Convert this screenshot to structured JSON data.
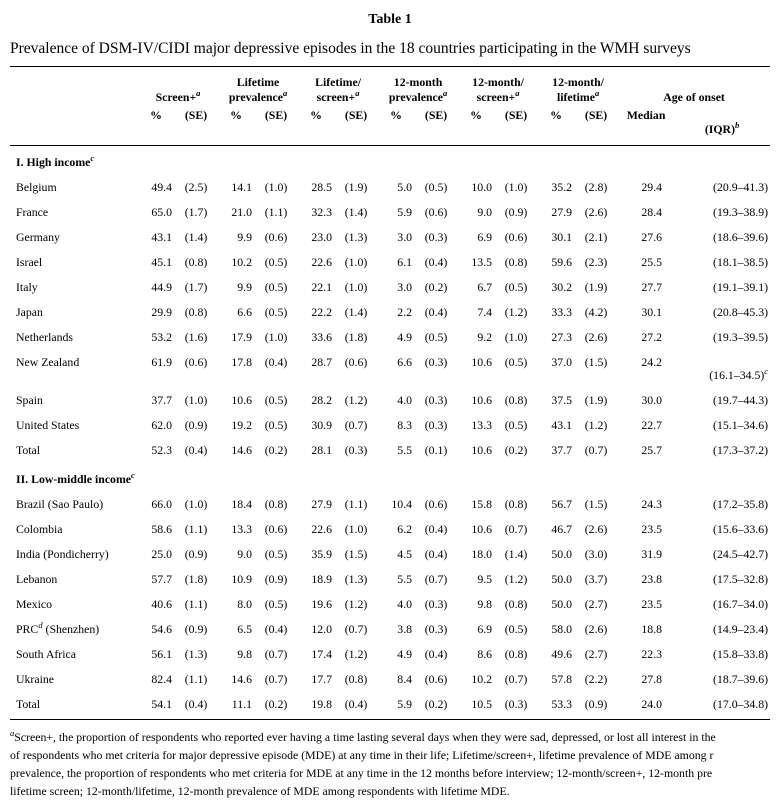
{
  "table": {
    "label": "Table 1",
    "caption": "Prevalence of DSM-IV/CIDI major depressive episodes in the 18 countries participating in the WMH surveys",
    "columns": [
      {
        "lines": [
          "Screen+"
        ],
        "sup": "a",
        "sub": [
          "%",
          "(SE)"
        ],
        "sub_sups": [
          "",
          ""
        ]
      },
      {
        "lines": [
          "Lifetime",
          "prevalence"
        ],
        "sup": "a",
        "sub": [
          "%",
          "(SE)"
        ],
        "sub_sups": [
          "",
          ""
        ]
      },
      {
        "lines": [
          "Lifetime/",
          "screen+"
        ],
        "sup": "a",
        "sub": [
          "%",
          "(SE)"
        ],
        "sub_sups": [
          "",
          ""
        ]
      },
      {
        "lines": [
          "12-month",
          "prevalence"
        ],
        "sup": "a",
        "sub": [
          "%",
          "(SE)"
        ],
        "sub_sups": [
          "",
          ""
        ]
      },
      {
        "lines": [
          "12-month/",
          "screen+"
        ],
        "sup": "a",
        "sub": [
          "%",
          "(SE)"
        ],
        "sub_sups": [
          "",
          ""
        ]
      },
      {
        "lines": [
          "12-month/",
          "lifetime"
        ],
        "sup": "a",
        "sub": [
          "%",
          "(SE)"
        ],
        "sub_sups": [
          "",
          ""
        ]
      },
      {
        "lines": [
          "Age of onset"
        ],
        "sup": "",
        "sub": [
          "Median",
          "(IQR)"
        ],
        "sub_sups": [
          "",
          "b"
        ]
      }
    ],
    "sections": [
      {
        "title": "I. High income",
        "sup": "c",
        "rows": [
          {
            "name": "Belgium",
            "sup": "",
            "rest": "",
            "v": [
              "49.4",
              "(2.5)",
              "14.1",
              "(1.0)",
              "28.5",
              "(1.9)",
              "5.0",
              "(0.5)",
              "10.0",
              "(1.0)",
              "35.2",
              "(2.8)"
            ],
            "median": "29.4",
            "iqr": "(20.9–41.3)",
            "iqr_sup": "",
            "iqr_wrap": false
          },
          {
            "name": "France",
            "sup": "",
            "rest": "",
            "v": [
              "65.0",
              "(1.7)",
              "21.0",
              "(1.1)",
              "32.3",
              "(1.4)",
              "5.9",
              "(0.6)",
              "9.0",
              "(0.9)",
              "27.9",
              "(2.6)"
            ],
            "median": "28.4",
            "iqr": "(19.3–38.9)",
            "iqr_sup": "",
            "iqr_wrap": false
          },
          {
            "name": "Germany",
            "sup": "",
            "rest": "",
            "v": [
              "43.1",
              "(1.4)",
              "9.9",
              "(0.6)",
              "23.0",
              "(1.3)",
              "3.0",
              "(0.3)",
              "6.9",
              "(0.6)",
              "30.1",
              "(2.1)"
            ],
            "median": "27.6",
            "iqr": "(18.6–39.6)",
            "iqr_sup": "",
            "iqr_wrap": false
          },
          {
            "name": "Israel",
            "sup": "",
            "rest": "",
            "v": [
              "45.1",
              "(0.8)",
              "10.2",
              "(0.5)",
              "22.6",
              "(1.0)",
              "6.1",
              "(0.4)",
              "13.5",
              "(0.8)",
              "59.6",
              "(2.3)"
            ],
            "median": "25.5",
            "iqr": "(18.1–38.5)",
            "iqr_sup": "",
            "iqr_wrap": false
          },
          {
            "name": "Italy",
            "sup": "",
            "rest": "",
            "v": [
              "44.9",
              "(1.7)",
              "9.9",
              "(0.5)",
              "22.1",
              "(1.0)",
              "3.0",
              "(0.2)",
              "6.7",
              "(0.5)",
              "30.2",
              "(1.9)"
            ],
            "median": "27.7",
            "iqr": "(19.1–39.1)",
            "iqr_sup": "",
            "iqr_wrap": false
          },
          {
            "name": "Japan",
            "sup": "",
            "rest": "",
            "v": [
              "29.9",
              "(0.8)",
              "6.6",
              "(0.5)",
              "22.2",
              "(1.4)",
              "2.2",
              "(0.4)",
              "7.4",
              "(1.2)",
              "33.3",
              "(4.2)"
            ],
            "median": "30.1",
            "iqr": "(20.8–45.3)",
            "iqr_sup": "",
            "iqr_wrap": false
          },
          {
            "name": "Netherlands",
            "sup": "",
            "rest": "",
            "v": [
              "53.2",
              "(1.6)",
              "17.9",
              "(1.0)",
              "33.6",
              "(1.8)",
              "4.9",
              "(0.5)",
              "9.2",
              "(1.0)",
              "27.3",
              "(2.6)"
            ],
            "median": "27.2",
            "iqr": "(19.3–39.5)",
            "iqr_sup": "",
            "iqr_wrap": false
          },
          {
            "name": "New Zealand",
            "sup": "",
            "rest": "",
            "v": [
              "61.9",
              "(0.6)",
              "17.8",
              "(0.4)",
              "28.7",
              "(0.6)",
              "6.6",
              "(0.3)",
              "10.6",
              "(0.5)",
              "37.0",
              "(1.5)"
            ],
            "median": "24.2",
            "iqr": "(16.1–34.5)",
            "iqr_sup": "c",
            "iqr_wrap": true
          },
          {
            "name": "Spain",
            "sup": "",
            "rest": "",
            "v": [
              "37.7",
              "(1.0)",
              "10.6",
              "(0.5)",
              "28.2",
              "(1.2)",
              "4.0",
              "(0.3)",
              "10.6",
              "(0.8)",
              "37.5",
              "(1.9)"
            ],
            "median": "30.0",
            "iqr": "(19.7–44.3)",
            "iqr_sup": "",
            "iqr_wrap": false
          },
          {
            "name": "United States",
            "sup": "",
            "rest": "",
            "v": [
              "62.0",
              "(0.9)",
              "19.2",
              "(0.5)",
              "30.9",
              "(0.7)",
              "8.3",
              "(0.3)",
              "13.3",
              "(0.5)",
              "43.1",
              "(1.2)"
            ],
            "median": "22.7",
            "iqr": "(15.1–34.6)",
            "iqr_sup": "",
            "iqr_wrap": false
          },
          {
            "name": "Total",
            "sup": "",
            "rest": "",
            "v": [
              "52.3",
              "(0.4)",
              "14.6",
              "(0.2)",
              "28.1",
              "(0.3)",
              "5.5",
              "(0.1)",
              "10.6",
              "(0.2)",
              "37.7",
              "(0.7)"
            ],
            "median": "25.7",
            "iqr": "(17.3–37.2)",
            "iqr_sup": "",
            "iqr_wrap": false
          }
        ]
      },
      {
        "title": "II. Low-middle income",
        "sup": "c",
        "rows": [
          {
            "name": "Brazil (Sao Paulo)",
            "sup": "",
            "rest": "",
            "v": [
              "66.0",
              "(1.0)",
              "18.4",
              "(0.8)",
              "27.9",
              "(1.1)",
              "10.4",
              "(0.6)",
              "15.8",
              "(0.8)",
              "56.7",
              "(1.5)"
            ],
            "median": "24.3",
            "iqr": "(17.2–35.8)",
            "iqr_sup": "",
            "iqr_wrap": false
          },
          {
            "name": "Colombia",
            "sup": "",
            "rest": "",
            "v": [
              "58.6",
              "(1.1)",
              "13.3",
              "(0.6)",
              "22.6",
              "(1.0)",
              "6.2",
              "(0.4)",
              "10.6",
              "(0.7)",
              "46.7",
              "(2.6)"
            ],
            "median": "23.5",
            "iqr": "(15.6–33.6)",
            "iqr_sup": "",
            "iqr_wrap": false
          },
          {
            "name": "India (Pondicherry)",
            "sup": "",
            "rest": "",
            "v": [
              "25.0",
              "(0.9)",
              "9.0",
              "(0.5)",
              "35.9",
              "(1.5)",
              "4.5",
              "(0.4)",
              "18.0",
              "(1.4)",
              "50.0",
              "(3.0)"
            ],
            "median": "31.9",
            "iqr": "(24.5–42.7)",
            "iqr_sup": "",
            "iqr_wrap": false
          },
          {
            "name": "Lebanon",
            "sup": "",
            "rest": "",
            "v": [
              "57.7",
              "(1.8)",
              "10.9",
              "(0.9)",
              "18.9",
              "(1.3)",
              "5.5",
              "(0.7)",
              "9.5",
              "(1.2)",
              "50.0",
              "(3.7)"
            ],
            "median": "23.8",
            "iqr": "(17.5–32.8)",
            "iqr_sup": "",
            "iqr_wrap": false
          },
          {
            "name": "Mexico",
            "sup": "",
            "rest": "",
            "v": [
              "40.6",
              "(1.1)",
              "8.0",
              "(0.5)",
              "19.6",
              "(1.2)",
              "4.0",
              "(0.3)",
              "9.8",
              "(0.8)",
              "50.0",
              "(2.7)"
            ],
            "median": "23.5",
            "iqr": "(16.7–34.0)",
            "iqr_sup": "",
            "iqr_wrap": false
          },
          {
            "name": "PRC",
            "sup": "d",
            "rest": " (Shenzhen)",
            "v": [
              "54.6",
              "(0.9)",
              "6.5",
              "(0.4)",
              "12.0",
              "(0.7)",
              "3.8",
              "(0.3)",
              "6.9",
              "(0.5)",
              "58.0",
              "(2.6)"
            ],
            "median": "18.8",
            "iqr": "(14.9–23.4)",
            "iqr_sup": "",
            "iqr_wrap": false
          },
          {
            "name": "South Africa",
            "sup": "",
            "rest": "",
            "v": [
              "56.1",
              "(1.3)",
              "9.8",
              "(0.7)",
              "17.4",
              "(1.2)",
              "4.9",
              "(0.4)",
              "8.6",
              "(0.8)",
              "49.6",
              "(2.7)"
            ],
            "median": "22.3",
            "iqr": "(15.8–33.8)",
            "iqr_sup": "",
            "iqr_wrap": false
          },
          {
            "name": "Ukraine",
            "sup": "",
            "rest": "",
            "v": [
              "82.4",
              "(1.1)",
              "14.6",
              "(0.7)",
              "17.7",
              "(0.8)",
              "8.4",
              "(0.6)",
              "10.2",
              "(0.7)",
              "57.8",
              "(2.2)"
            ],
            "median": "27.8",
            "iqr": "(18.7–39.6)",
            "iqr_sup": "",
            "iqr_wrap": false
          },
          {
            "name": "Total",
            "sup": "",
            "rest": "",
            "v": [
              "54.1",
              "(0.4)",
              "11.1",
              "(0.2)",
              "19.8",
              "(0.4)",
              "5.9",
              "(0.2)",
              "10.5",
              "(0.3)",
              "53.3",
              "(0.9)"
            ],
            "median": "24.0",
            "iqr": "(17.0–34.8)",
            "iqr_sup": "",
            "iqr_wrap": false
          }
        ]
      }
    ]
  },
  "footnotes": {
    "marker": "a",
    "lines": [
      "Screen+, the proportion of respondents who reported ever having a time lasting several days when they were sad, depressed, or lost all interest in the",
      "of respondents who met criteria for major depressive episode (MDE) at any time in their life; Lifetime/screen+, lifetime prevalence of MDE among r",
      "prevalence, the proportion of respondents who met criteria for MDE at any time in the 12 months before interview; 12-month/screen+, 12-month pre",
      "lifetime screen; 12-month/lifetime, 12-month prevalence of MDE among respondents with lifetime MDE."
    ]
  }
}
